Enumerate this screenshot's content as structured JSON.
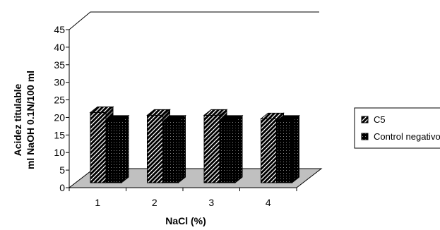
{
  "chart_data": {
    "type": "bar",
    "style": "3d-clustered-column",
    "categories": [
      "1",
      "2",
      "3",
      "4"
    ],
    "series": [
      {
        "name": "C5",
        "values": [
          20,
          19.2,
          19.2,
          18.2
        ],
        "pattern": "diagonal-hatch"
      },
      {
        "name": "Control negativo",
        "values": [
          17.5,
          17.5,
          17.5,
          17.5
        ],
        "pattern": "black-dotted"
      }
    ],
    "xlabel": "NaCl (%)",
    "ylabel_lines": [
      "Acidez titulable",
      "ml NaOH 0.1N/100 ml"
    ],
    "ylim": [
      0,
      45
    ],
    "yticks": [
      "0",
      "5",
      "10",
      "15",
      "20",
      "25",
      "30",
      "35",
      "40",
      "45"
    ],
    "grid": false,
    "legend_position": "right",
    "colors": {
      "floor": "#c0c0c0",
      "bar": "#000000"
    }
  }
}
